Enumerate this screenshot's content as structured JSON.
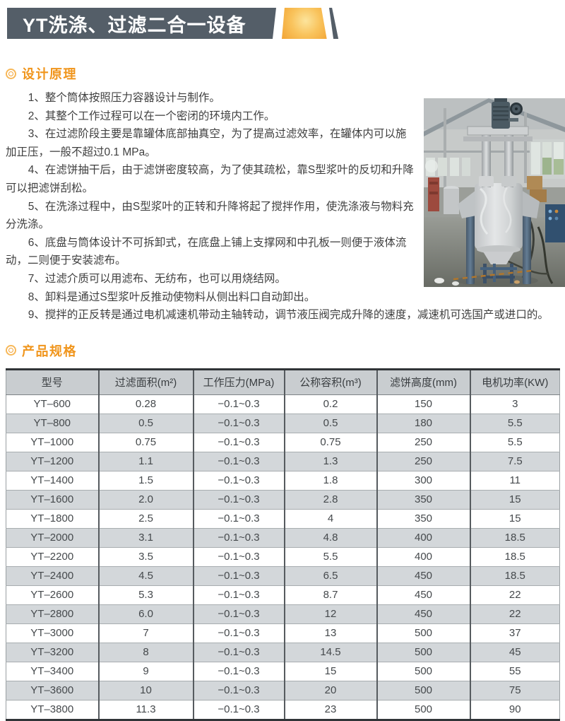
{
  "header": {
    "title": "YT洗涤、过滤二合一设备"
  },
  "colors": {
    "titlebar_bg": "#545e68",
    "accent_orange": "#f2a333",
    "heading_orange": "#f0951c",
    "table_header_bg": "#c9cdd0",
    "table_alt_row_bg": "#d3d7da"
  },
  "sections": {
    "design": {
      "heading": "设计原理",
      "items": [
        "1、整个筒体按照压力容器设计与制作。",
        "2、其整个工作过程可以在一个密闭的环境内工作。",
        "3、在过滤阶段主要是靠罐体底部抽真空，为了提高过滤效率，在罐体内可以施加正压，一般不超过0.1 MPa。",
        "4、在滤饼抽干后，由于滤饼密度较高，为了使其疏松，靠S型浆叶的反切和升降可以把滤饼刮松。",
        "5、在洗涤过程中，由S型浆叶的正转和升降将起了搅拌作用，使洗涤液与物料充分洗涤。",
        "6、底盘与筒体设计不可拆卸式，在底盘上铺上支撑网和中孔板一则便于液体流动，二则便于安装滤布。",
        "7、过滤介质可以用滤布、无纺布，也可以用烧结网。",
        "8、卸料是通过S型浆叶反推动使物料从侧出料口自动卸出。",
        "9、搅拌的正反转是通过电机减速机带动主轴转动，调节液压阀完成升降的速度，减速机可选国产或进口的。"
      ]
    },
    "specs": {
      "heading": "产品规格"
    }
  },
  "photo": {
    "description": "工厂车间内包裹防护膜的YT洗涤过滤二合一设备实物照片"
  },
  "table": {
    "columns": [
      "型号",
      "过滤面积(m²)",
      "工作压力(MPa)",
      "公称容积(m³)",
      "滤饼高度(mm)",
      "电机功率(KW)"
    ],
    "rows": [
      [
        "YT–600",
        "0.28",
        "−0.1~0.3",
        "0.2",
        "150",
        "3"
      ],
      [
        "YT–800",
        "0.5",
        "−0.1~0.3",
        "0.5",
        "180",
        "5.5"
      ],
      [
        "YT–1000",
        "0.75",
        "−0.1~0.3",
        "0.75",
        "250",
        "5.5"
      ],
      [
        "YT–1200",
        "1.1",
        "−0.1~0.3",
        "1.3",
        "250",
        "7.5"
      ],
      [
        "YT–1400",
        "1.5",
        "−0.1~0.3",
        "1.8",
        "300",
        "11"
      ],
      [
        "YT–1600",
        "2.0",
        "−0.1~0.3",
        "2.8",
        "350",
        "15"
      ],
      [
        "YT–1800",
        "2.5",
        "−0.1~0.3",
        "4",
        "350",
        "15"
      ],
      [
        "YT–2000",
        "3.1",
        "−0.1~0.3",
        "4.8",
        "400",
        "18.5"
      ],
      [
        "YT–2200",
        "3.5",
        "−0.1~0.3",
        "5.5",
        "400",
        "18.5"
      ],
      [
        "YT–2400",
        "4.5",
        "−0.1~0.3",
        "6.5",
        "450",
        "18.5"
      ],
      [
        "YT–2600",
        "5.3",
        "−0.1~0.3",
        "8.7",
        "450",
        "22"
      ],
      [
        "YT–2800",
        "6.0",
        "−0.1~0.3",
        "12",
        "450",
        "22"
      ],
      [
        "YT–3000",
        "7",
        "−0.1~0.3",
        "13",
        "500",
        "37"
      ],
      [
        "YT–3200",
        "8",
        "−0.1~0.3",
        "14.5",
        "500",
        "45"
      ],
      [
        "YT–3400",
        "9",
        "−0.1~0.3",
        "15",
        "500",
        "55"
      ],
      [
        "YT–3600",
        "10",
        "−0.1~0.3",
        "20",
        "500",
        "75"
      ],
      [
        "YT–3800",
        "11.3",
        "−0.1~0.3",
        "23",
        "500",
        "90"
      ]
    ]
  }
}
